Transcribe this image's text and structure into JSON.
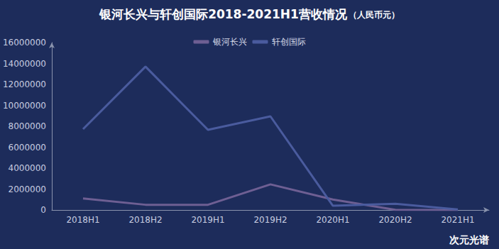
{
  "chart_data": {
    "type": "line",
    "title": "银河长兴与轩创国际2018-2021H1营收情况",
    "subtitle": "（人民币元）",
    "annotations": [
      "次元光谱"
    ],
    "categories": [
      "2018H1",
      "2018H2",
      "2019H1",
      "2019H2",
      "2020H1",
      "2020H2",
      "2021H1"
    ],
    "series": [
      {
        "name": "银河长兴",
        "color": "#6e5f93",
        "values": [
          1100000,
          500000,
          500000,
          2450000,
          1000000,
          20000,
          0
        ]
      },
      {
        "name": "轩创国际",
        "color": "#4a5b9e",
        "values": [
          7730000,
          13700000,
          7660000,
          8950000,
          400000,
          600000,
          50000
        ]
      }
    ],
    "ylim": [
      0,
      16000000
    ],
    "yticks": [
      0,
      2000000,
      4000000,
      6000000,
      8000000,
      10000000,
      12000000,
      14000000,
      16000000
    ],
    "grid": false,
    "legend": "top"
  }
}
